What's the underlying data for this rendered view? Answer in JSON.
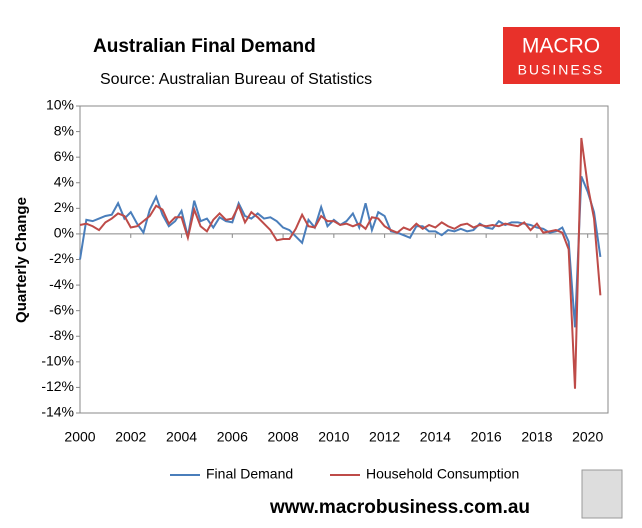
{
  "chart_data": {
    "type": "line",
    "title": "Australian Final Demand",
    "subtitle": "Source: Australian Bureau of Statistics",
    "logo": [
      "MACRO",
      "BUSINESS"
    ],
    "y_label": "Quarterly Change",
    "footer": "www.macrobusiness.com.au",
    "xlim": [
      2000,
      2020.8
    ],
    "xticks": [
      2000,
      2002,
      2004,
      2006,
      2008,
      2010,
      2012,
      2014,
      2016,
      2018,
      2020
    ],
    "ylim": [
      -14,
      10
    ],
    "yticks": [
      {
        "value": 10,
        "label": "10%"
      },
      {
        "value": 8,
        "label": "8%"
      },
      {
        "value": 6,
        "label": "6%"
      },
      {
        "value": 4,
        "label": "4%"
      },
      {
        "value": 2,
        "label": "2%"
      },
      {
        "value": 0,
        "label": "0%"
      },
      {
        "value": -2,
        "label": "-2%"
      },
      {
        "value": -4,
        "label": "-4%"
      },
      {
        "value": -6,
        "label": "-6%"
      },
      {
        "value": -8,
        "label": "-8%"
      },
      {
        "value": -10,
        "label": "-10%"
      },
      {
        "value": -12,
        "label": "-12%"
      },
      {
        "value": -14,
        "label": "-14%"
      }
    ],
    "grid": false,
    "legend": "bottom",
    "x": [
      2000,
      2000.25,
      2000.5,
      2000.75,
      2001,
      2001.25,
      2001.5,
      2001.75,
      2002,
      2002.25,
      2002.5,
      2002.75,
      2003,
      2003.25,
      2003.5,
      2003.75,
      2004,
      2004.25,
      2004.5,
      2004.75,
      2005,
      2005.25,
      2005.5,
      2005.75,
      2006,
      2006.25,
      2006.5,
      2006.75,
      2007,
      2007.25,
      2007.5,
      2007.75,
      2008,
      2008.25,
      2008.5,
      2008.75,
      2009,
      2009.25,
      2009.5,
      2009.75,
      2010,
      2010.25,
      2010.5,
      2010.75,
      2011,
      2011.25,
      2011.5,
      2011.75,
      2012,
      2012.25,
      2012.5,
      2012.75,
      2013,
      2013.25,
      2013.5,
      2013.75,
      2014,
      2014.25,
      2014.5,
      2014.75,
      2015,
      2015.25,
      2015.5,
      2015.75,
      2016,
      2016.25,
      2016.5,
      2016.75,
      2017,
      2017.25,
      2017.5,
      2017.75,
      2018,
      2018.25,
      2018.5,
      2018.75,
      2019,
      2019.25,
      2019.5,
      2019.75,
      2020,
      2020.25,
      2020.5
    ],
    "series": [
      {
        "name": "Final Demand",
        "color": "#4a7ebb",
        "values": [
          -2.0,
          1.1,
          1.0,
          1.2,
          1.4,
          1.5,
          2.4,
          1.2,
          1.7,
          0.8,
          0.1,
          1.9,
          2.9,
          1.5,
          0.6,
          1.0,
          1.8,
          -0.2,
          2.6,
          1.0,
          1.2,
          0.5,
          1.3,
          1.0,
          0.9,
          2.4,
          1.4,
          1.2,
          1.6,
          1.2,
          1.3,
          1.0,
          0.5,
          0.3,
          -0.2,
          -0.7,
          1.1,
          0.5,
          2.1,
          0.6,
          1.1,
          0.7,
          1.0,
          1.6,
          0.5,
          2.4,
          0.3,
          1.7,
          1.4,
          0.2,
          0.1,
          -0.1,
          -0.3,
          0.6,
          0.6,
          0.2,
          0.2,
          -0.1,
          0.3,
          0.2,
          0.4,
          0.2,
          0.3,
          0.8,
          0.5,
          0.4,
          1.0,
          0.7,
          0.9,
          0.9,
          0.8,
          0.7,
          0.5,
          0.4,
          0.1,
          0.2,
          0.5,
          -0.6,
          -7.3,
          4.5,
          3.3,
          1.7,
          -1.8
        ]
      },
      {
        "name": "Household Consumption",
        "color": "#be4b48",
        "values": [
          0.7,
          0.8,
          0.6,
          0.3,
          0.9,
          1.2,
          1.6,
          1.4,
          0.5,
          0.6,
          1.0,
          1.4,
          2.2,
          1.9,
          0.8,
          1.3,
          1.3,
          -0.3,
          1.9,
          0.6,
          0.2,
          1.1,
          1.6,
          1.1,
          1.2,
          2.2,
          0.9,
          1.7,
          1.3,
          0.8,
          0.3,
          -0.5,
          -0.4,
          -0.4,
          0.4,
          1.5,
          0.6,
          0.5,
          1.4,
          1.0,
          1.0,
          0.7,
          0.8,
          0.6,
          0.8,
          0.4,
          1.3,
          1.2,
          0.6,
          0.3,
          0.1,
          0.5,
          0.3,
          0.8,
          0.4,
          0.7,
          0.5,
          0.9,
          0.6,
          0.4,
          0.7,
          0.8,
          0.5,
          0.7,
          0.6,
          0.7,
          0.6,
          0.8,
          0.7,
          0.6,
          0.9,
          0.3,
          0.8,
          0.1,
          0.2,
          0.3,
          0.1,
          -1.2,
          -12.1,
          7.5,
          3.8,
          1.2,
          -4.8
        ]
      }
    ]
  }
}
